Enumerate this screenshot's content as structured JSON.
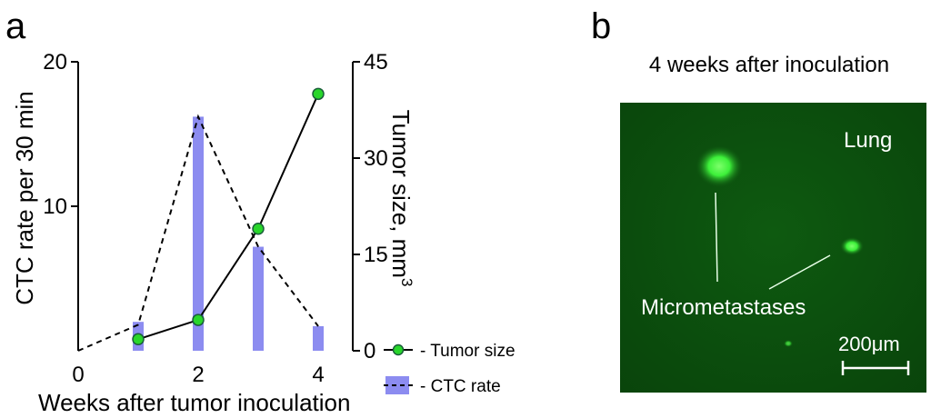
{
  "panels": {
    "a": {
      "letter": "a"
    },
    "b": {
      "letter": "b",
      "title": "4 weeks after inoculation"
    }
  },
  "chart_data": {
    "type": "bar+line",
    "xlabel": "Weeks after tumor inoculation",
    "ylabel_left": "CTC rate per 30 min",
    "ylabel_right": "Tumor size, mm",
    "ylabel_right_superscript": "3",
    "xlim": [
      0,
      4.2
    ],
    "ylim_left": [
      0,
      20
    ],
    "ylim_right": [
      0,
      45
    ],
    "xticks": [
      0,
      2,
      4
    ],
    "yticks_left": [
      10,
      20
    ],
    "yticks_right": [
      0,
      15,
      30,
      45
    ],
    "ctc_bars": {
      "name": "CTC rate",
      "x": [
        1,
        2,
        3,
        4
      ],
      "values": [
        2.0,
        16.2,
        7.2,
        1.7
      ]
    },
    "ctc_dashed_line": {
      "x": [
        0,
        1,
        2,
        3,
        4
      ],
      "values": [
        0,
        1.8,
        16.2,
        7.2,
        1.7
      ]
    },
    "tumor_size": {
      "name": "Tumor size",
      "x": [
        1,
        2,
        3,
        4
      ],
      "values": [
        1.8,
        4.8,
        19.0,
        40.0
      ]
    },
    "legend": [
      {
        "label": "- Tumor size",
        "kind": "marker-line"
      },
      {
        "label": "- CTC rate",
        "kind": "bar-dash"
      }
    ],
    "legend_position": "bottom-right",
    "colors": {
      "bar": "#8c8cf0",
      "marker": "#29d62b",
      "line": "#000000"
    }
  },
  "micrograph": {
    "organ_label": "Lung",
    "annotation": "Micrometastases",
    "scale_value": "200",
    "scale_unit": "μm",
    "background_color": "#0b4d0d",
    "spot_color": "#3df03a"
  }
}
